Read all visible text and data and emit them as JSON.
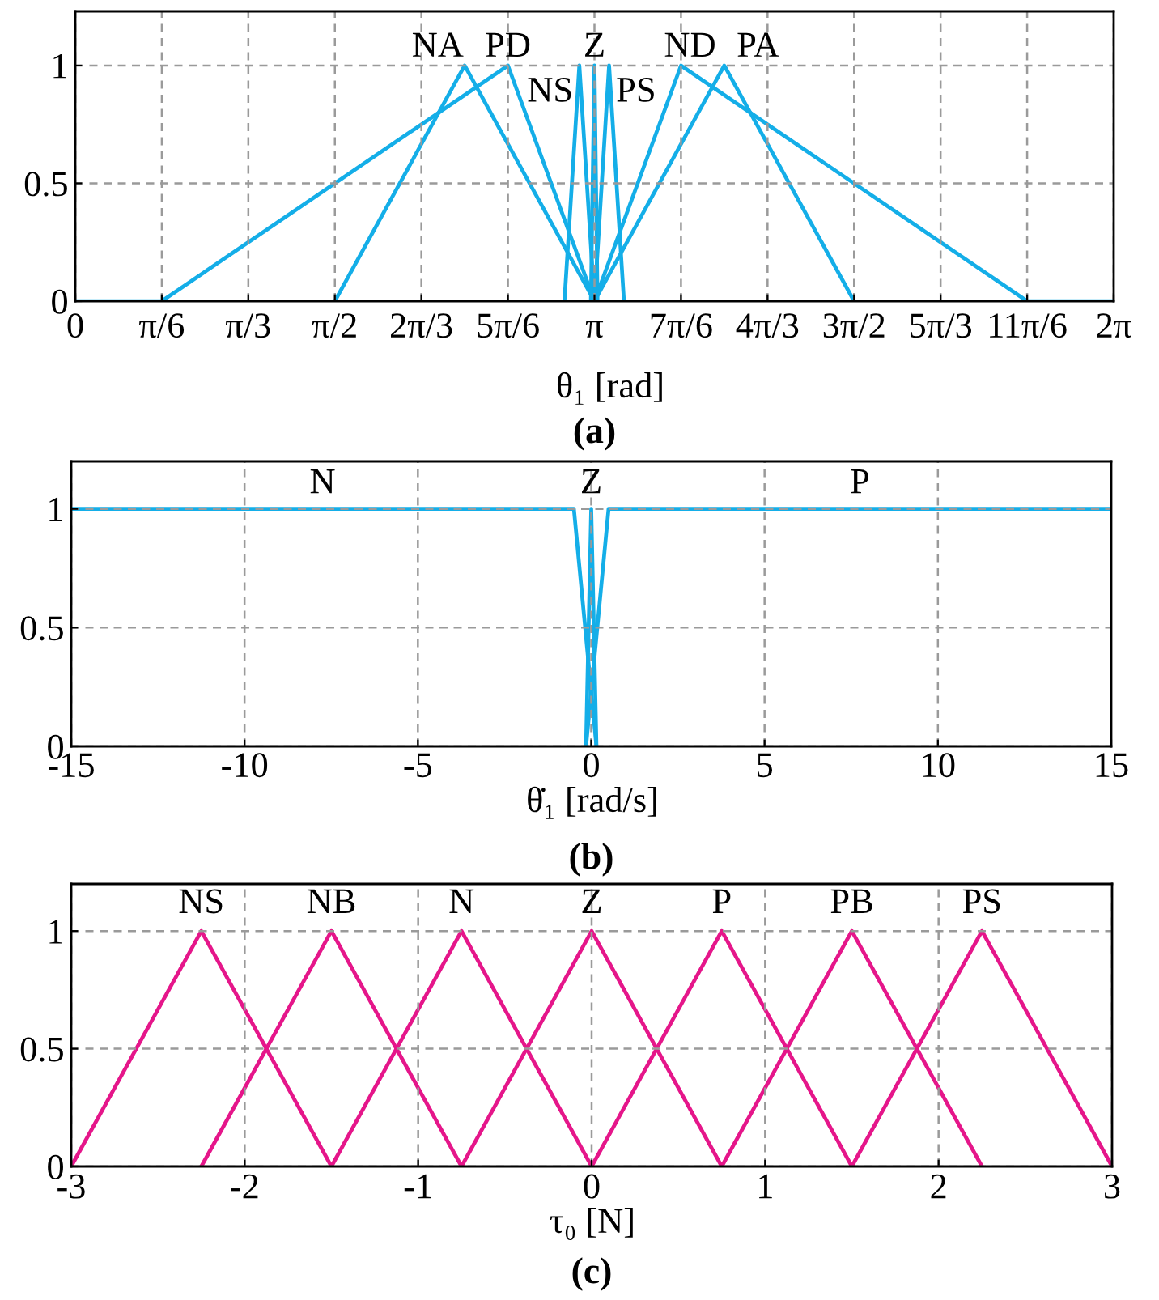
{
  "chart_data": [
    {
      "type": "line",
      "xlabel": "θ₁ [rad]",
      "annotations": [
        "(a)"
      ],
      "xlim": [
        0,
        6.2832
      ],
      "ylim": [
        0,
        1.23
      ],
      "xticks": [
        0,
        {
          "value": 0.5236,
          "label": "π/6"
        },
        {
          "value": 1.0472,
          "label": "π/3"
        },
        {
          "value": 1.5708,
          "label": "π/2"
        },
        {
          "value": 2.0944,
          "label": "2π/3"
        },
        {
          "value": 2.618,
          "label": "5π/6"
        },
        {
          "value": 3.1416,
          "label": "π"
        },
        {
          "value": 3.6652,
          "label": "7π/6"
        },
        {
          "value": 4.1888,
          "label": "4π/3"
        },
        {
          "value": 4.7124,
          "label": "3π/2"
        },
        {
          "value": 5.236,
          "label": "5π/3"
        },
        {
          "value": 5.7596,
          "label": "11π/6"
        },
        {
          "value": 6.2832,
          "label": "2π"
        }
      ],
      "yticks": [
        0,
        0.5,
        1
      ],
      "grid": true,
      "series": [
        {
          "name": "NA",
          "color": "#14aee8",
          "x": [
            1.5708,
            2.3562,
            3.1416
          ],
          "values": [
            0,
            1,
            0
          ]
        },
        {
          "name": "PD",
          "color": "#14aee8",
          "x": [
            0,
            0.5236,
            2.618,
            3.1416
          ],
          "values": [
            0,
            0,
            1,
            0
          ]
        },
        {
          "name": "NS",
          "color": "#14aee8",
          "x": [
            2.96,
            3.05,
            3.1416
          ],
          "values": [
            0,
            1,
            0
          ]
        },
        {
          "name": "Z",
          "color": "#14aee8",
          "x": [
            3.12,
            3.1416,
            3.16
          ],
          "values": [
            0,
            1,
            0
          ]
        },
        {
          "name": "PS",
          "color": "#14aee8",
          "x": [
            3.1416,
            3.23,
            3.32
          ],
          "values": [
            0,
            1,
            0
          ]
        },
        {
          "name": "ND",
          "color": "#14aee8",
          "x": [
            3.1416,
            3.6652,
            5.7596,
            6.2832
          ],
          "values": [
            0,
            1,
            0,
            0
          ]
        },
        {
          "name": "PA",
          "color": "#14aee8",
          "x": [
            3.1416,
            3.927,
            4.7124
          ],
          "values": [
            0,
            1,
            0
          ]
        }
      ]
    },
    {
      "type": "line",
      "xlabel": "θ̇₁ [rad/s]",
      "annotations": [
        "(b)"
      ],
      "xlim": [
        -15,
        15
      ],
      "ylim": [
        0,
        1.2
      ],
      "xticks": [
        -15,
        -10,
        -5,
        0,
        5,
        10,
        15
      ],
      "yticks": [
        0,
        0.5,
        1
      ],
      "grid": true,
      "series": [
        {
          "name": "N",
          "color": "#14aee8",
          "x": [
            -15,
            -0.5,
            0.15
          ],
          "values": [
            1,
            1,
            0
          ]
        },
        {
          "name": "Z",
          "color": "#14aee8",
          "x": [
            -0.15,
            0,
            0.15
          ],
          "values": [
            0,
            1,
            0
          ]
        },
        {
          "name": "P",
          "color": "#14aee8",
          "x": [
            -0.15,
            0.5,
            15
          ],
          "values": [
            0,
            1,
            1
          ]
        }
      ]
    },
    {
      "type": "line",
      "xlabel": "τ₀ [N]",
      "annotations": [
        "(c)"
      ],
      "xlim": [
        -3,
        3
      ],
      "ylim": [
        0,
        1.2
      ],
      "xticks": [
        -3,
        -2,
        -1,
        0,
        1,
        2,
        3
      ],
      "yticks": [
        0,
        0.5,
        1
      ],
      "grid": true,
      "series": [
        {
          "name": "NS",
          "color": "#e5168a",
          "x": [
            -3,
            -2.25,
            -1.5
          ],
          "values": [
            0,
            1,
            0
          ]
        },
        {
          "name": "NB",
          "color": "#e5168a",
          "x": [
            -2.25,
            -1.5,
            -0.75
          ],
          "values": [
            0,
            1,
            0
          ]
        },
        {
          "name": "N",
          "color": "#e5168a",
          "x": [
            -1.5,
            -0.75,
            0
          ],
          "values": [
            0,
            1,
            0
          ]
        },
        {
          "name": "Z",
          "color": "#e5168a",
          "x": [
            -0.75,
            0,
            0.75
          ],
          "values": [
            0,
            1,
            0
          ]
        },
        {
          "name": "P",
          "color": "#e5168a",
          "x": [
            0,
            0.75,
            1.5
          ],
          "values": [
            0,
            1,
            0
          ]
        },
        {
          "name": "PB",
          "color": "#e5168a",
          "x": [
            0.75,
            1.5,
            2.25
          ],
          "values": [
            0,
            1,
            0
          ]
        },
        {
          "name": "PS",
          "color": "#e5168a",
          "x": [
            1.5,
            2.25,
            3
          ],
          "values": [
            0,
            1,
            0
          ]
        }
      ]
    }
  ]
}
